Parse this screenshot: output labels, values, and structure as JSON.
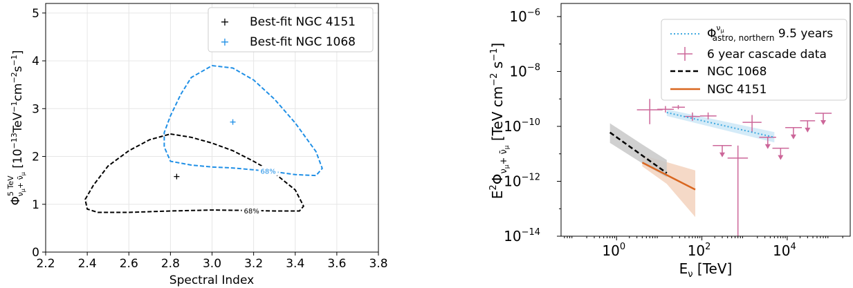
{
  "chart_data": [
    {
      "type": "contour",
      "xlabel": "Spectral Index",
      "ylabel": {
        "prefix": "Φ",
        "sup": "5 TeV",
        "sub": "ν",
        "sub2": "μ",
        "sub3": "+ ν̄",
        "sub4": "μ",
        "unit": " [10",
        "exp1": "−13",
        "unit2": "TeV",
        "exp2": "−1",
        "unit3": "cm",
        "exp3": "−2",
        "unit4": "s",
        "exp4": "−1",
        "close": "]"
      },
      "xlim": [
        2.2,
        3.8
      ],
      "ylim": [
        0,
        5.2
      ],
      "xticks": [
        "2.2",
        "2.4",
        "2.6",
        "2.8",
        "3.0",
        "3.2",
        "3.4",
        "3.6",
        "3.8"
      ],
      "yticks": [
        "0",
        "1",
        "2",
        "3",
        "4",
        "5"
      ],
      "grid": true,
      "legend_position": "top-right",
      "legend": [
        "Best-fit NGC 4151",
        "Best-fit NGC 1068"
      ],
      "colors": {
        "ngc4151": "#000000",
        "ngc1068": "#1f8fe6"
      },
      "series": [
        {
          "name": "Best-fit NGC 4151",
          "best_fit": {
            "x": 2.83,
            "y": 1.58
          },
          "contour_label": "68%",
          "contour": [
            [
              2.8,
              2.47
            ],
            [
              2.9,
              2.4
            ],
            [
              3.0,
              2.28
            ],
            [
              3.1,
              2.12
            ],
            [
              3.2,
              1.9
            ],
            [
              3.3,
              1.65
            ],
            [
              3.4,
              1.3
            ],
            [
              3.44,
              0.96
            ],
            [
              3.42,
              0.86
            ],
            [
              3.3,
              0.86
            ],
            [
              3.2,
              0.87
            ],
            [
              3.0,
              0.88
            ],
            [
              2.8,
              0.86
            ],
            [
              2.6,
              0.83
            ],
            [
              2.45,
              0.83
            ],
            [
              2.4,
              0.9
            ],
            [
              2.39,
              1.1
            ],
            [
              2.43,
              1.4
            ],
            [
              2.5,
              1.8
            ],
            [
              2.6,
              2.12
            ],
            [
              2.7,
              2.35
            ],
            [
              2.8,
              2.47
            ]
          ]
        },
        {
          "name": "Best-fit NGC 1068",
          "best_fit": {
            "x": 3.1,
            "y": 2.72
          },
          "contour_label": "68%",
          "contour": [
            [
              3.0,
              3.9
            ],
            [
              3.1,
              3.85
            ],
            [
              3.2,
              3.6
            ],
            [
              3.3,
              3.2
            ],
            [
              3.4,
              2.7
            ],
            [
              3.5,
              2.1
            ],
            [
              3.53,
              1.75
            ],
            [
              3.5,
              1.6
            ],
            [
              3.4,
              1.62
            ],
            [
              3.3,
              1.68
            ],
            [
              3.2,
              1.72
            ],
            [
              3.1,
              1.76
            ],
            [
              3.0,
              1.78
            ],
            [
              2.9,
              1.82
            ],
            [
              2.8,
              1.9
            ],
            [
              2.77,
              2.2
            ],
            [
              2.77,
              2.5
            ],
            [
              2.8,
              2.85
            ],
            [
              2.85,
              3.3
            ],
            [
              2.9,
              3.65
            ],
            [
              3.0,
              3.9
            ]
          ]
        }
      ]
    },
    {
      "type": "line",
      "xscale": "log",
      "yscale": "log",
      "xlabel": {
        "main": "E",
        "sub": "ν",
        "unit": " [TeV]"
      },
      "ylabel": {
        "main": "E",
        "sup": "2",
        "phi": "Φ",
        "sub": "ν",
        "subsub": "μ",
        "plus": "+ ν̄",
        "subsub2": "μ",
        "unit": " [TeV cm",
        "exp1": "−2",
        "s": " s",
        "exp2": "−1",
        "close": "]"
      },
      "xlim": [
        0.05,
        300000
      ],
      "ylim": [
        1e-14,
        3e-06
      ],
      "xticks": [
        {
          "base": "10",
          "exp": "0",
          "v": 1
        },
        {
          "base": "10",
          "exp": "2",
          "v": 100
        },
        {
          "base": "10",
          "exp": "4",
          "v": 10000
        }
      ],
      "yticks": [
        {
          "base": "10",
          "exp": "−14",
          "v": 1e-14
        },
        {
          "base": "10",
          "exp": "−12",
          "v": 1e-12
        },
        {
          "base": "10",
          "exp": "−10",
          "v": 1e-10
        },
        {
          "base": "10",
          "exp": "−8",
          "v": 1e-08
        },
        {
          "base": "10",
          "exp": "−6",
          "v": 1e-06
        }
      ],
      "grid": false,
      "legend_position": "top-right",
      "legend": [
        {
          "label": "Φ",
          "sup": "ν",
          "supsub": "μ",
          "sub": "astro, northern",
          "rest": " 9.5 years"
        },
        {
          "label": "6 year cascade data"
        },
        {
          "label": "NGC 1068"
        },
        {
          "label": "NGC 4151"
        }
      ],
      "colors": {
        "astro": "#3fa9e0",
        "astro_band": "#cde8f7",
        "cascade": "#cc6699",
        "ngc1068": "#000000",
        "ngc1068_band": "#c8c8c8",
        "ngc4151": "#d9661f",
        "ngc4151_band": "#f3d2bd"
      },
      "series": [
        {
          "name": "Φ astro, northern 9.5 years",
          "line": [
            [
              15,
              3.2e-10
            ],
            [
              5000,
              4e-11
            ]
          ],
          "band_upper": [
            [
              15,
              4.2e-10
            ],
            [
              5000,
              6.2e-11
            ]
          ],
          "band_lower": [
            [
              15,
              2.4e-10
            ],
            [
              5000,
              2.6e-11
            ]
          ]
        },
        {
          "name": "6 year cascade data",
          "points": [
            {
              "x": 6,
              "y": 4e-10,
              "xerr": [
                3,
                12
              ],
              "yerr": [
                1.2e-10,
                1e-09
              ]
            },
            {
              "x": 14,
              "y": 4.2e-10,
              "xerr": [
                9,
                22
              ],
              "yerr": [
                3.2e-10,
                5.5e-10
              ]
            },
            {
              "x": 28,
              "y": 5e-10,
              "xerr": [
                20,
                40
              ],
              "yerr": [
                4.2e-10,
                6e-10
              ]
            },
            {
              "x": 60,
              "y": 2.3e-10,
              "xerr": [
                40,
                90
              ],
              "yerr": [
                1.6e-10,
                3.2e-10
              ]
            },
            {
              "x": 140,
              "y": 2.4e-10,
              "xerr": [
                90,
                220
              ],
              "yerr": [
                1.8e-10,
                3.2e-10
              ]
            },
            {
              "x": 1500,
              "y": 1.4e-10,
              "xerr": [
                900,
                2500
              ],
              "yerr": [
                6e-11,
                2.6e-10
              ]
            },
            {
              "x": 700,
              "y": 7e-12,
              "xerr": [
                400,
                1200
              ],
              "yerr": [
                1e-15,
                2e-11
              ]
            }
          ],
          "upper_limits": [
            {
              "x": 300,
              "xerr": [
                180,
                500
              ],
              "y": 2e-11
            },
            {
              "x": 3500,
              "xerr": [
                2200,
                5500
              ],
              "y": 4e-11
            },
            {
              "x": 7000,
              "xerr": [
                4500,
                11000
              ],
              "y": 1.6e-11
            },
            {
              "x": 14000,
              "xerr": [
                9000,
                22000
              ],
              "y": 9e-11
            },
            {
              "x": 30000,
              "xerr": [
                20000,
                45000
              ],
              "y": 1.6e-10
            },
            {
              "x": 70000,
              "xerr": [
                45000,
                110000
              ],
              "y": 3e-10
            }
          ]
        },
        {
          "name": "NGC 1068",
          "line": [
            [
              0.7,
              6e-11
            ],
            [
              15,
              2e-12
            ]
          ],
          "band_upper": [
            [
              0.7,
              1.3e-10
            ],
            [
              4,
              2.2e-11
            ],
            [
              15,
              6e-12
            ]
          ],
          "band_lower": [
            [
              0.7,
              2.5e-11
            ],
            [
              4,
              4.5e-12
            ],
            [
              15,
              1.4e-12
            ]
          ]
        },
        {
          "name": "NGC 4151",
          "line": [
            [
              4,
              4.8e-12
            ],
            [
              70,
              5e-13
            ]
          ],
          "band_upper": [
            [
              4,
              9e-12
            ],
            [
              15,
              5e-12
            ],
            [
              70,
              2.5e-12
            ]
          ],
          "band_lower": [
            [
              4,
              3.5e-12
            ],
            [
              15,
              8e-13
            ],
            [
              70,
              5e-14
            ]
          ]
        }
      ]
    }
  ]
}
